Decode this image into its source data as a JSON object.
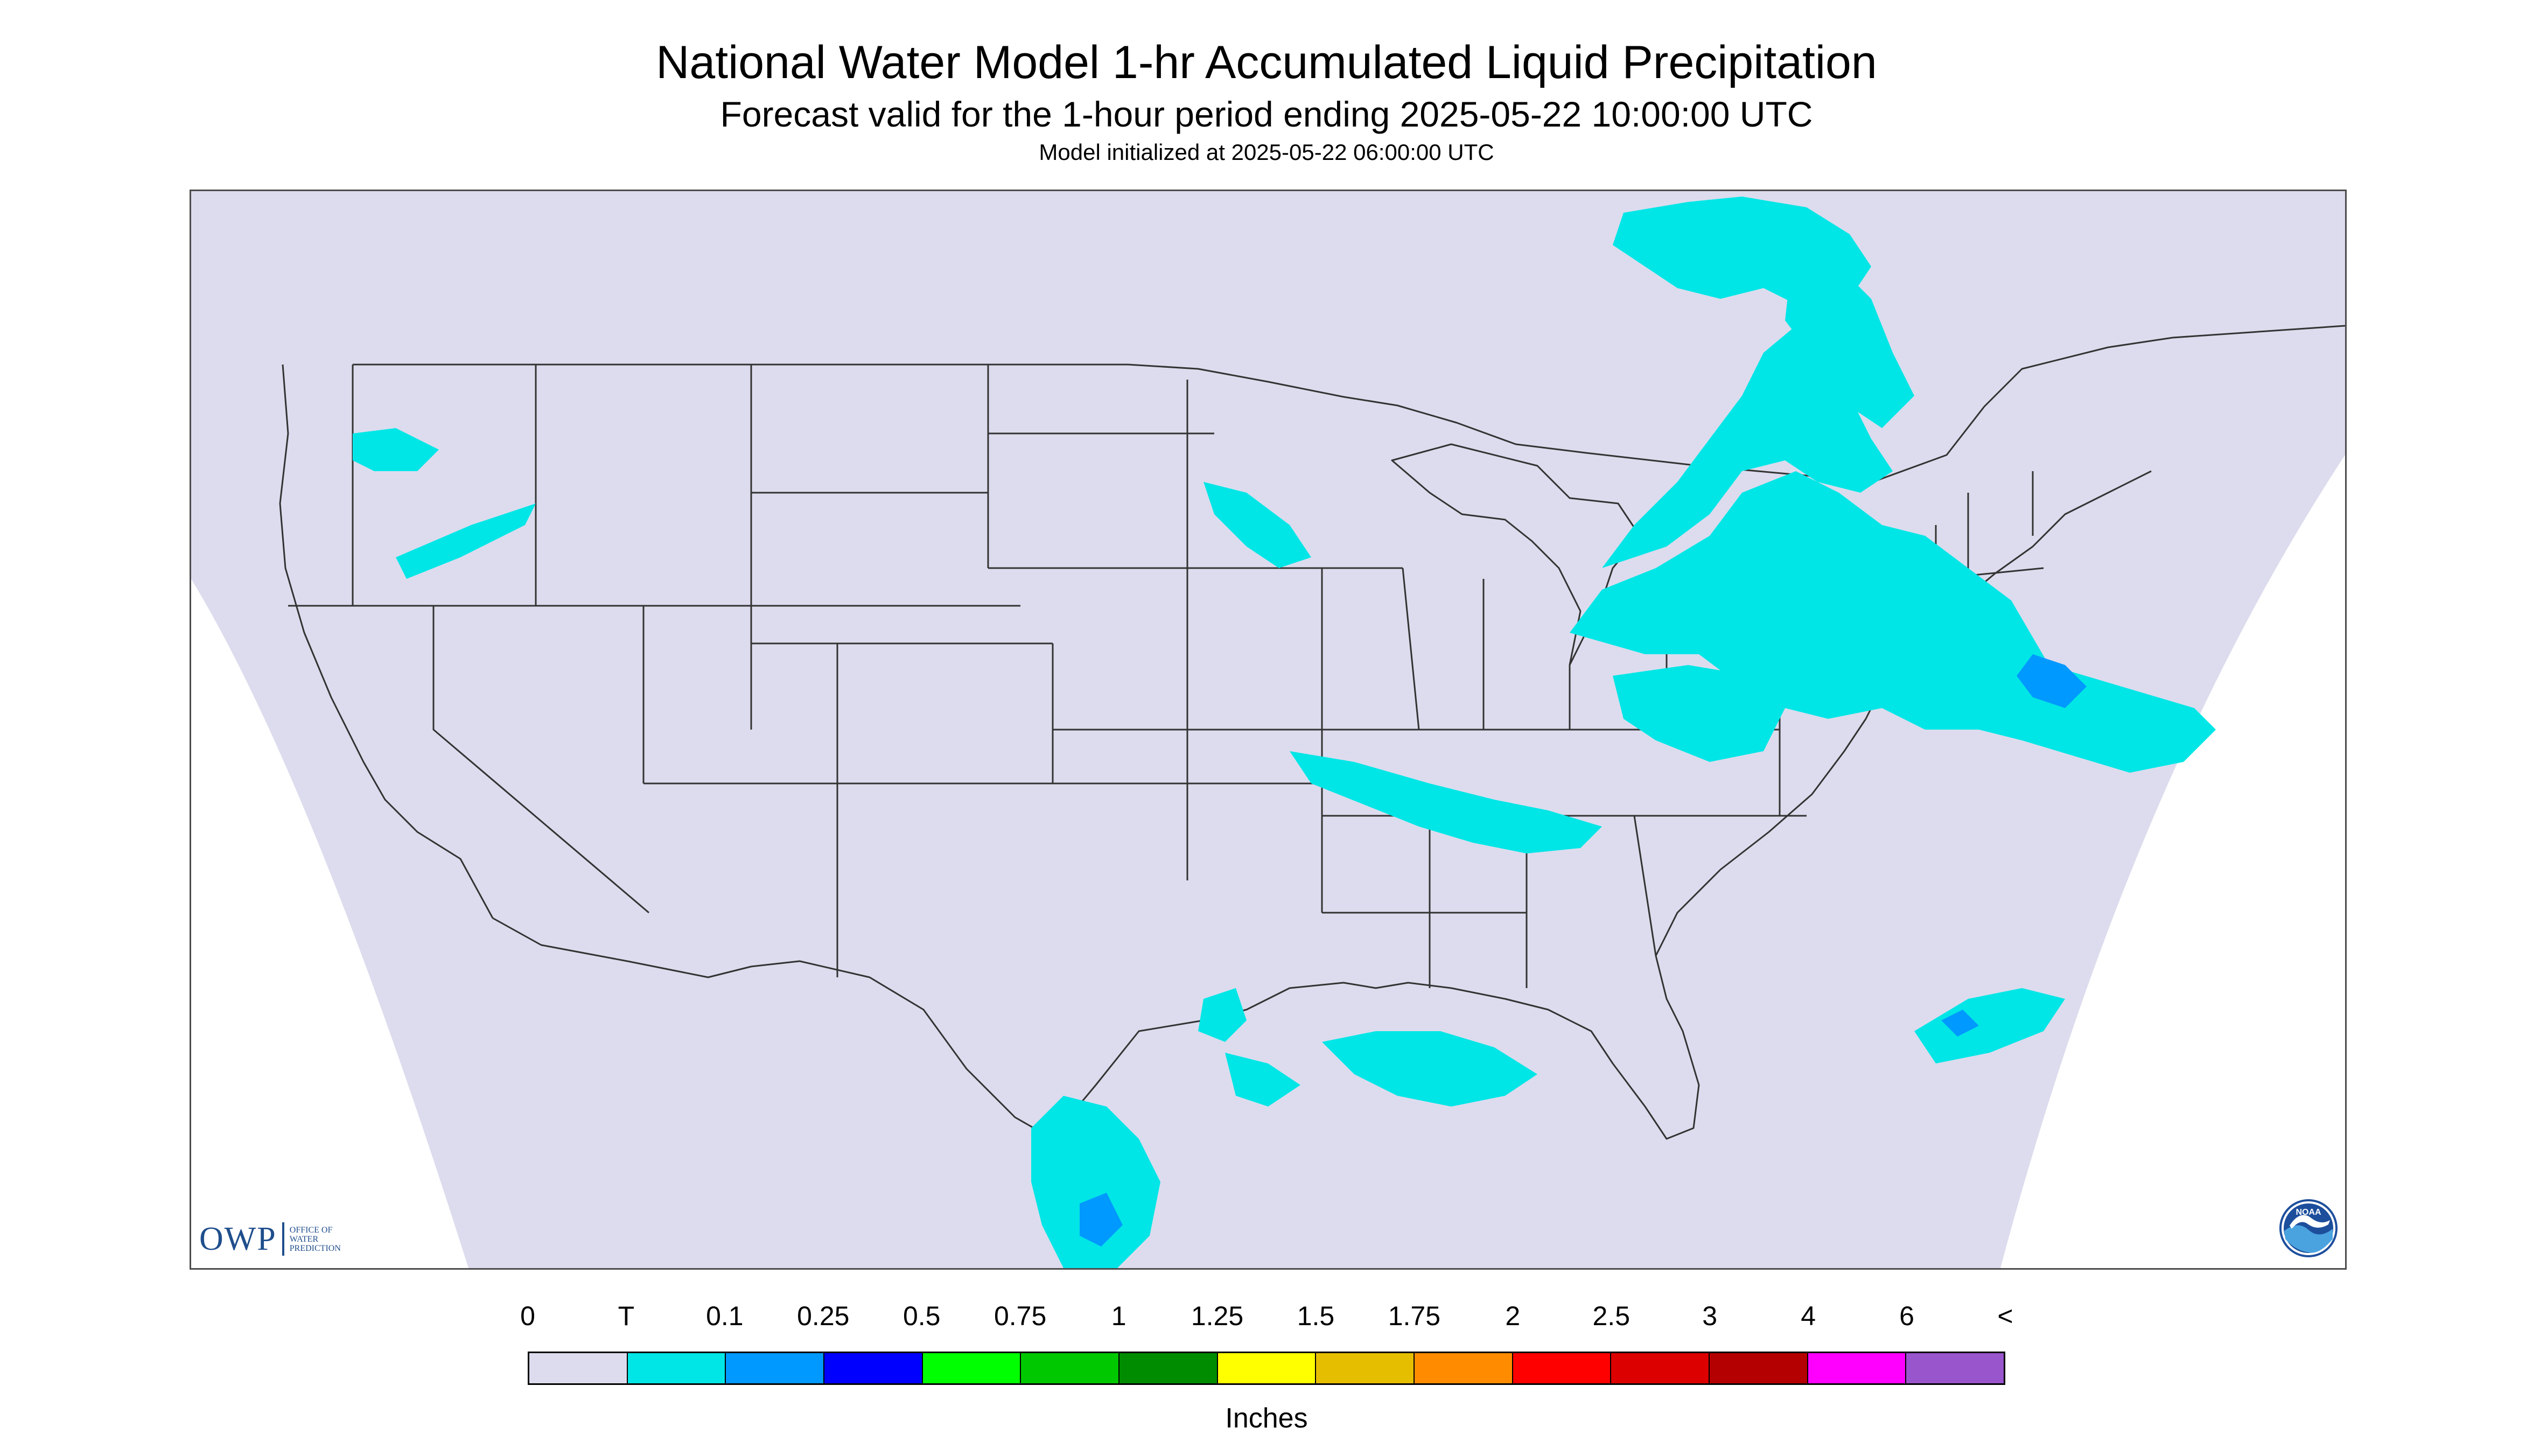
{
  "titles": {
    "main": "National Water Model 1-hr Accumulated Liquid Precipitation",
    "valid": "Forecast valid for the 1-hour period ending 2025-05-22 10:00:00 UTC",
    "init": "Model initialized at 2025-05-22 06:00:00 UTC"
  },
  "map": {
    "background_color": "#dcdcee",
    "outside_color": "#ffffff",
    "boundary_color": "#333333",
    "light_precip_color": "#00e6e6",
    "moderate_precip_color": "#0099ff",
    "heavy_precip_color": "#3a3aff"
  },
  "logos": {
    "owp": {
      "letters": "OWP",
      "line1": "Office of",
      "line2": "Water",
      "line3": "Prediction"
    },
    "noaa": {
      "text": "NOAA",
      "icon": "noaa-seal-icon"
    }
  },
  "legend": {
    "units": "Inches",
    "labels": [
      "0",
      "T",
      "0.1",
      "0.25",
      "0.5",
      "0.75",
      "1",
      "1.25",
      "1.5",
      "1.75",
      "2",
      "2.5",
      "3",
      "4",
      "6",
      "<"
    ],
    "colors": [
      "#dcdcee",
      "#00e6e6",
      "#0099ff",
      "#0000ff",
      "#00ff00",
      "#00c800",
      "#008c00",
      "#ffff00",
      "#e6be00",
      "#ff8c00",
      "#ff0000",
      "#dc0000",
      "#b40000",
      "#ff00ff",
      "#9955cc"
    ]
  }
}
